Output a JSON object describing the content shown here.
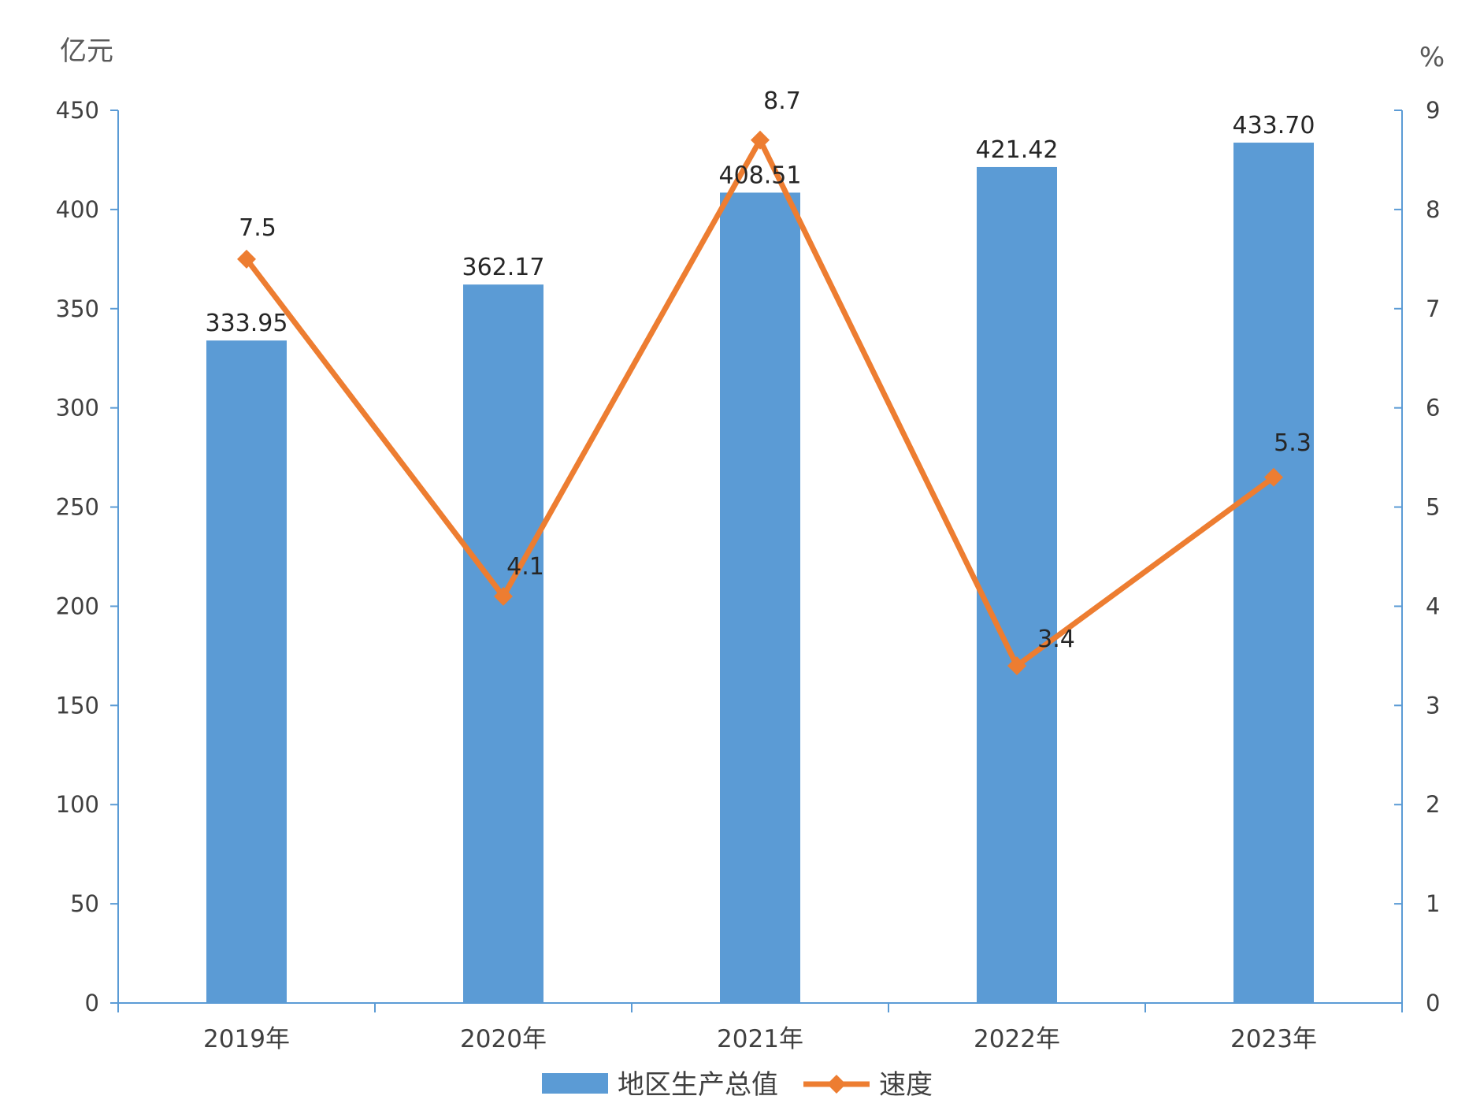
{
  "chart_data": {
    "type": "bar",
    "categories": [
      "2019年",
      "2020年",
      "2021年",
      "2022年",
      "2023年"
    ],
    "series": [
      {
        "name": "地区生产总值",
        "type": "bar",
        "axis": "left",
        "values": [
          333.95,
          362.17,
          408.51,
          421.42,
          433.7
        ],
        "labels": [
          "333.95",
          "362.17",
          "408.51",
          "421.42",
          "433.70"
        ],
        "color": "#5b9bd5"
      },
      {
        "name": "速度",
        "type": "line",
        "axis": "right",
        "values": [
          7.5,
          4.1,
          8.7,
          3.4,
          5.3
        ],
        "labels": [
          "7.5",
          "4.1",
          "8.7",
          "3.4",
          "5.3"
        ],
        "color": "#ed7d31",
        "marker": "diamond"
      }
    ],
    "y_left": {
      "unit": "亿元",
      "range": [
        0,
        450
      ],
      "ticks": [
        "0",
        "50",
        "100",
        "150",
        "200",
        "250",
        "300",
        "350",
        "400",
        "450"
      ]
    },
    "y_right": {
      "unit": "%",
      "range": [
        0,
        9
      ],
      "ticks": [
        "0",
        "1",
        "2",
        "3",
        "4",
        "5",
        "6",
        "7",
        "8",
        "9"
      ]
    },
    "legend_position": "bottom",
    "grid": false
  }
}
